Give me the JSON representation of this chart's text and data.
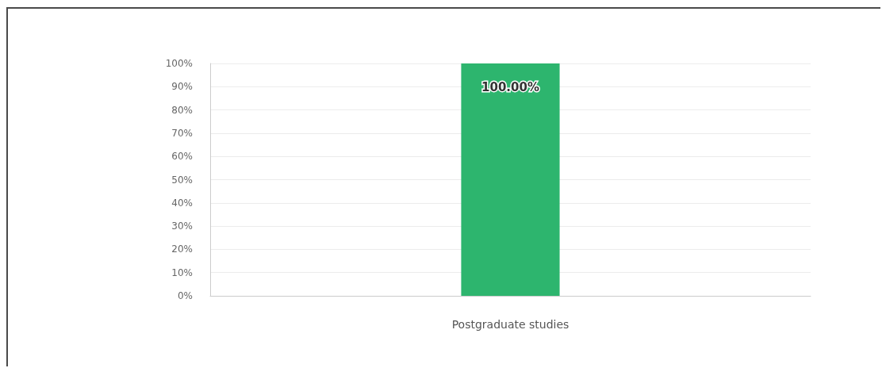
{
  "chart_data": {
    "type": "bar",
    "categories": [
      "Postgraduate studies"
    ],
    "values": [
      100
    ],
    "color": "#2db56e",
    "value_labels": [
      "100.00%"
    ],
    "ylim": [
      0,
      100
    ],
    "yticks": [
      {
        "value": 0,
        "label": "0%"
      },
      {
        "value": 10,
        "label": "10%"
      },
      {
        "value": 20,
        "label": "20%"
      },
      {
        "value": 30,
        "label": "30%"
      },
      {
        "value": 40,
        "label": "40%"
      },
      {
        "value": 50,
        "label": "50%"
      },
      {
        "value": 60,
        "label": "60%"
      },
      {
        "value": 70,
        "label": "70%"
      },
      {
        "value": 80,
        "label": "80%"
      },
      {
        "value": 90,
        "label": "90%"
      },
      {
        "value": 100,
        "label": "100%"
      }
    ],
    "grid": "y"
  }
}
